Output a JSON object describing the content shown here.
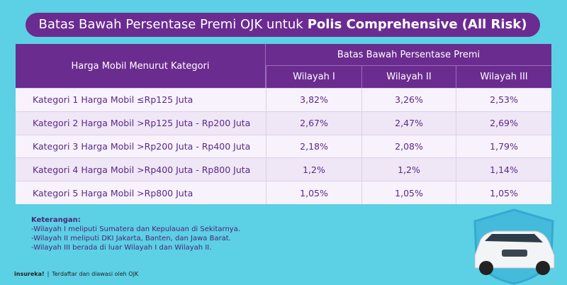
{
  "title": {
    "normal": "Batas Bawah Persentase Premi OJK untuk",
    "bold": "Polis Comprehensive (All Risk)"
  },
  "table": {
    "header": {
      "category": "Harga Mobil Menurut Kategori",
      "group": "Batas Bawah Persentase Premi",
      "regions": [
        "Wilayah I",
        "Wilayah II",
        "Wilayah III"
      ]
    },
    "rows": [
      [
        "Kategori 1 Harga Mobil ≤Rp125 Juta",
        "3,82%",
        "3,26%",
        "2,53%"
      ],
      [
        "Kategori 2 Harga Mobil >Rp125 Juta - Rp200 Juta",
        "2,67%",
        "2,47%",
        "2,69%"
      ],
      [
        "Kategori 3 Harga Mobil >Rp200 Juta - Rp400 Juta",
        "2,18%",
        "2,08%",
        "1,79%"
      ],
      [
        "Kategori 4 Harga Mobil >Rp400 Juta - Rp800 Juta",
        "1,2%",
        "1,2%",
        "1,14%"
      ],
      [
        "Kategori 5 Harga Mobil >Rp800 Juta",
        "1,05%",
        "1,05%",
        "1,05%"
      ]
    ]
  },
  "notes": {
    "title": "Keterangan:",
    "items": [
      "-Wilayah I meliputi Sumatera dan Kepulauan di Sekitarnya.",
      "-Wilayah II meliputi DKI Jakarta, Banten, dan Jawa Barat.",
      "-Wilayah III berada di luar Wilayah I dan Wilayah II."
    ]
  },
  "footer": {
    "brand": "insureka!",
    "separator": "|",
    "text": "Terdaftar dan diawasi oleh OJK"
  }
}
